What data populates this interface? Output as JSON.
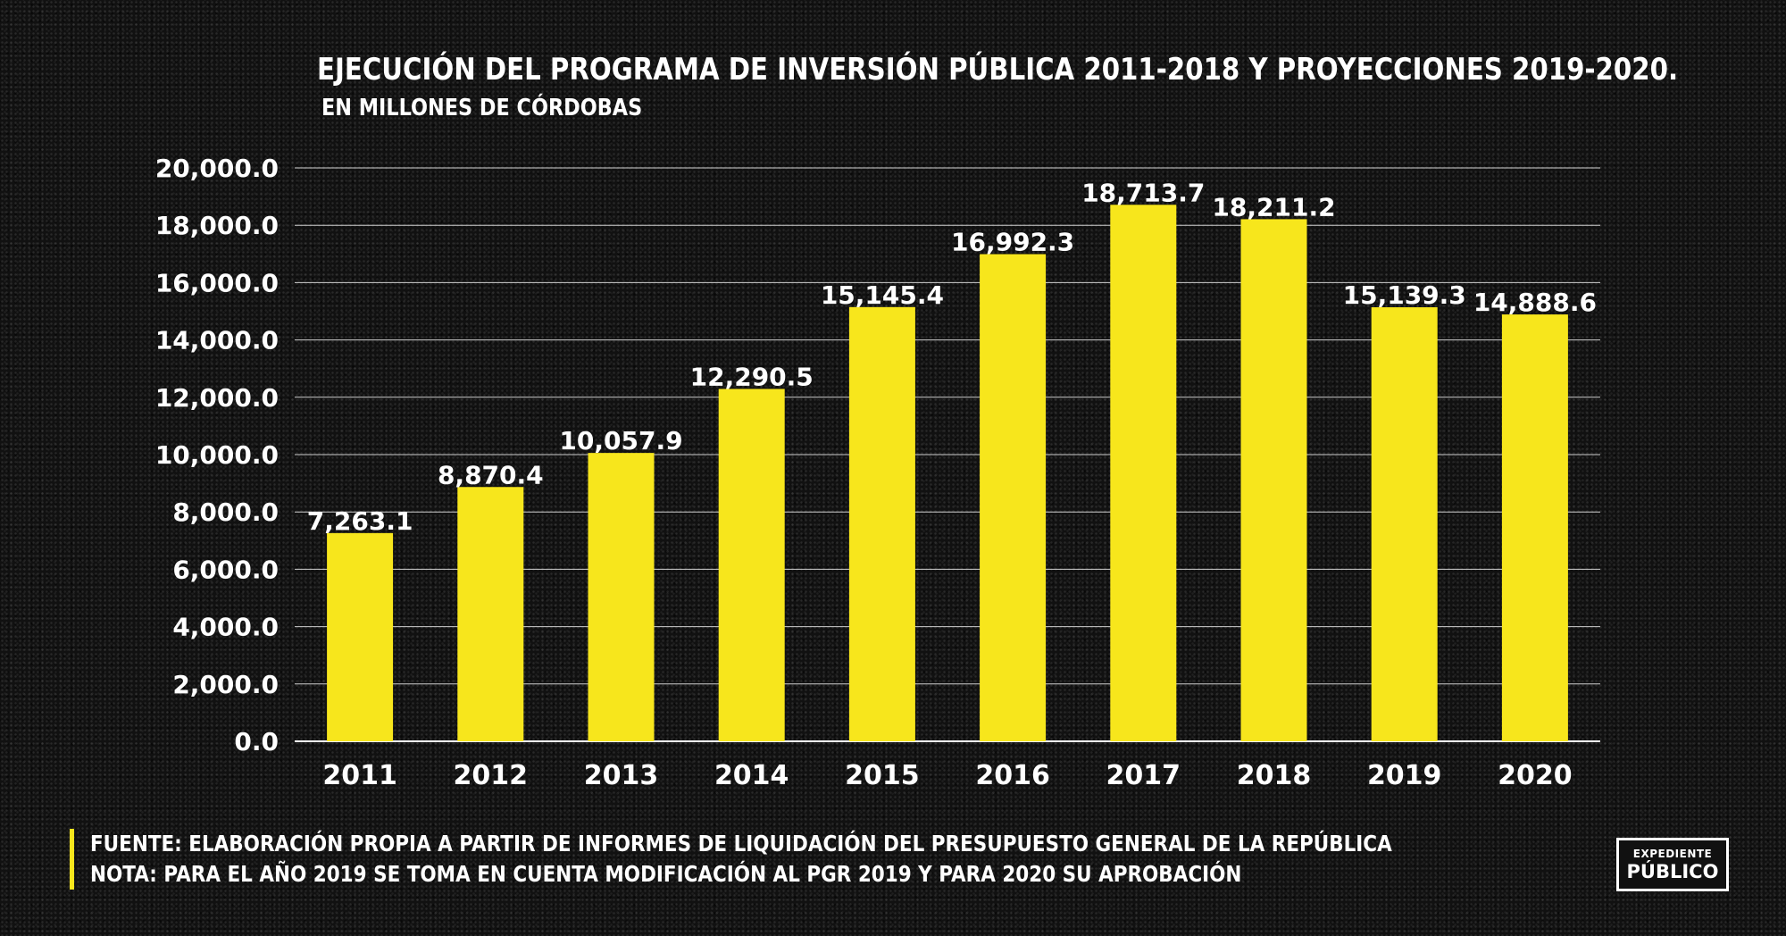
{
  "header": {
    "title": "EJECUCIÓN DEL PROGRAMA DE INVERSIÓN PÚBLICA 2011-2018 Y PROYECCIONES 2019-2020.",
    "subtitle": "EN MILLONES DE CÓRDOBAS"
  },
  "chart_data": {
    "type": "bar",
    "title": "EJECUCIÓN DEL PROGRAMA DE INVERSIÓN PÚBLICA 2011-2018 Y PROYECCIONES 2019-2020.",
    "subtitle": "EN MILLONES DE CÓRDOBAS",
    "xlabel": "",
    "ylabel": "",
    "categories": [
      "2011",
      "2012",
      "2013",
      "2014",
      "2015",
      "2016",
      "2017",
      "2018",
      "2019",
      "2020"
    ],
    "values": [
      7263.1,
      8870.4,
      10057.9,
      12290.5,
      15145.4,
      16992.3,
      18713.7,
      18211.2,
      15139.3,
      14888.6
    ],
    "value_labels": [
      "7,263.1",
      "8,870.4",
      "10,057.9",
      "12,290.5",
      "15,145.4",
      "16,992.3",
      "18,713.7",
      "18,211.2",
      "15,139.3",
      "14,888.6"
    ],
    "ylim": [
      0,
      20000
    ],
    "yticks": [
      0,
      2000,
      4000,
      6000,
      8000,
      10000,
      12000,
      14000,
      16000,
      18000,
      20000
    ],
    "ytick_labels": [
      "0.0",
      "2,000.0",
      "4,000.0",
      "6,000.0",
      "8,000.0",
      "10,000.0",
      "12,000.0",
      "14,000.0",
      "16,000.0",
      "18,000.0",
      "20,000.0"
    ],
    "grid": true,
    "legend": "none",
    "bar_color": "#f7e61c"
  },
  "footer": {
    "source": "FUENTE: ELABORACIÓN PROPIA A PARTIR DE INFORMES DE LIQUIDACIÓN DEL PRESUPUESTO GENERAL DE LA REPÚBLICA",
    "note": "NOTA: PARA EL AÑO 2019 SE TOMA EN CUENTA MODIFICACIÓN AL PGR 2019 Y PARA 2020 SU APROBACIÓN"
  },
  "logo": {
    "line1": "EXPEDIENTE",
    "line2": "PÚBLICO"
  },
  "colors": {
    "background": "#111111",
    "bar": "#f7e61c",
    "text": "#ffffff",
    "gridline": "#cfcfcf"
  }
}
